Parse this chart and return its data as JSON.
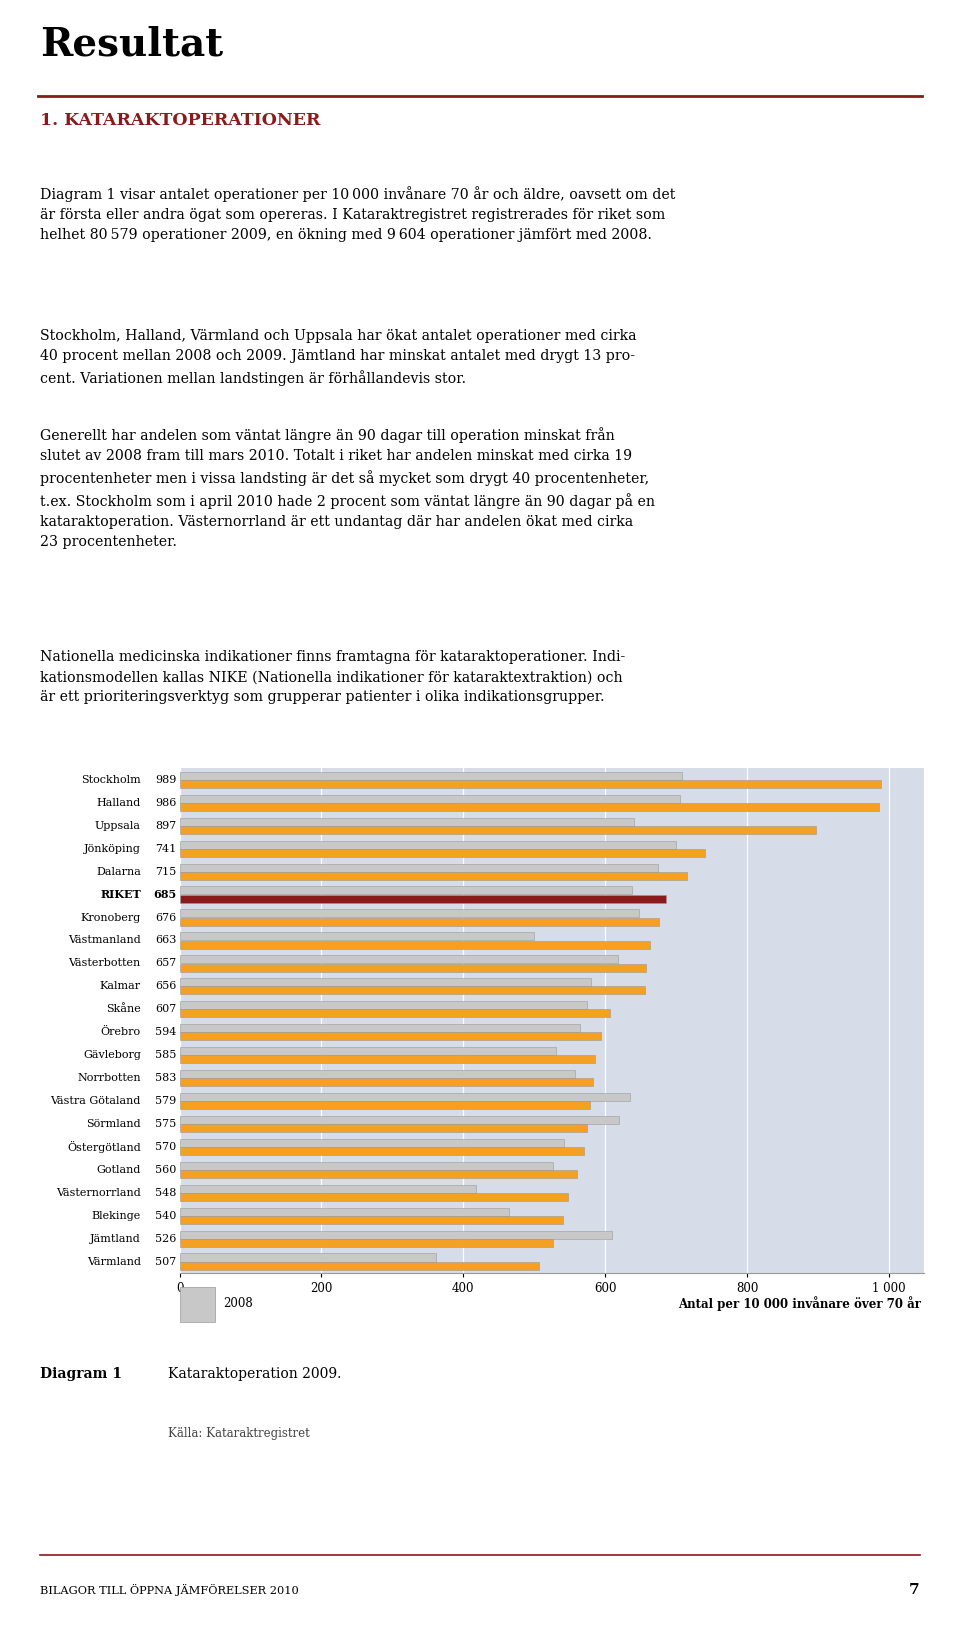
{
  "categories": [
    "Stockholm",
    "Halland",
    "Uppsala",
    "Jönköping",
    "Dalarna",
    "RIKET",
    "Kronoberg",
    "Västmanland",
    "Västerbotten",
    "Kalmar",
    "Skåne",
    "Örebro",
    "Gävleborg",
    "Norrbotten",
    "Västra Götaland",
    "Sörmland",
    "Östergötland",
    "Gotland",
    "Västernorrland",
    "Blekinge",
    "Jämtland",
    "Värmland"
  ],
  "values_2009": [
    989,
    986,
    897,
    741,
    715,
    685,
    676,
    663,
    657,
    656,
    607,
    594,
    585,
    583,
    579,
    575,
    570,
    560,
    548,
    540,
    526,
    507
  ],
  "values_2008": [
    708,
    705,
    640,
    700,
    675,
    638,
    648,
    500,
    618,
    580,
    575,
    565,
    530,
    558,
    635,
    620,
    542,
    527,
    418,
    465,
    610,
    362
  ],
  "color_2009_normal": "#F5A020",
  "color_2009_riket": "#8B1A1A",
  "color_2008": "#C8C8C8",
  "background_color": "#D6DDE8",
  "xlim_max": 1050,
  "xticks": [
    0,
    200,
    400,
    600,
    800,
    1000
  ],
  "xtick_labels": [
    "0",
    "200",
    "400",
    "600",
    "800",
    "1 000"
  ],
  "xlabel": "Antal per 10 000 invånare över 70 år",
  "diagram_label": "Diagram 1",
  "diagram_title": "Kataraktoperation 2009.",
  "diagram_source": "Källa: Kataraktregistret",
  "legend_2008": "2008",
  "page_header": "Resultat",
  "section_title": "1. KATARAKTOPERATIONER",
  "header_line_color": "#8B1A1A",
  "section_title_color": "#8B1A1A",
  "footer_text": "BILAGOR TILL ÖPPNA JÄMFÖRELSER 2010",
  "footer_page": "7",
  "body1": "Diagram 1 visar antalet operationer per 10 000 invånare 70 år och äldre, oavsett om det\när första eller andra ögat som opereras. I Kataraktregistret registrerades för riket som\nhelhet 80 579 operationer 2009, en ökning med 9 604 operationer jämfört med 2008.",
  "body2": "Stockholm, Halland, Värmland och Uppsala har ökat antalet operationer med cirka\n40 procent mellan 2008 och 2009. Jämtland har minskat antalet med drygt 13 pro-\ncent. Variationen mellan landstingen är förhållandevis stor.",
  "body3": "Generellt har andelen som väntat längre än 90 dagar till operation minskat från\nslutet av 2008 fram till mars 2010. Totalt i riket har andelen minskat med cirka 19\nprocentenheter men i vissa landsting är det så mycket som drygt 40 procentenheter,\nt.ex. Stockholm som i april 2010 hade 2 procent som väntat längre än 90 dagar på en\nkataraktoperation. Västernorrland är ett undantag där har andelen ökat med cirka\n23 procentenheter.",
  "body4": "Nationella medicinska indikationer finns framtagna för kataraktoperationer. Indi-\nkationsmodellen kallas NIKE (Nationella indikationer för kataraktextraktion) och\när ett prioriteringsverktyg som grupperar patienter i olika indikationsgrupper."
}
